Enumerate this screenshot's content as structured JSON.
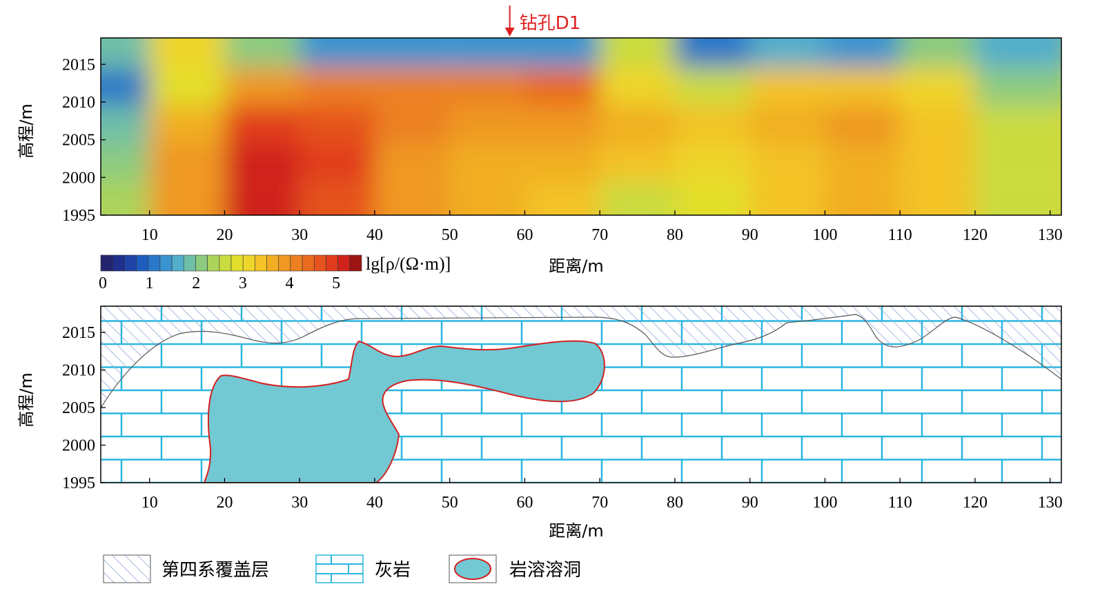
{
  "borehole": {
    "label": "钻孔D1",
    "x": 58
  },
  "axes": {
    "x_ticks": [
      10,
      20,
      30,
      40,
      50,
      60,
      70,
      80,
      90,
      100,
      110,
      120,
      130
    ],
    "y_ticks": [
      1995,
      2000,
      2005,
      2010,
      2015
    ],
    "x_range": [
      3.5,
      131.5
    ],
    "y_range": [
      1995,
      2018.5
    ],
    "xlabel": "距离/m",
    "ylabel": "高程/m"
  },
  "colorbar": {
    "label": "lg[ρ/(Ω·m)]",
    "ticks": [
      "0",
      "1",
      "2",
      "3",
      "4",
      "5"
    ],
    "colors": [
      "#24246e",
      "#202e8c",
      "#1e44aa",
      "#1f5ebf",
      "#2a78c8",
      "#3a94cf",
      "#52aecb",
      "#6fbfa8",
      "#8ccb80",
      "#acd45c",
      "#cadb3f",
      "#e2df2c",
      "#efd52a",
      "#f3c327",
      "#f1ae24",
      "#ef9822",
      "#ec8020",
      "#e86a1f",
      "#e5531e",
      "#e13c1d",
      "#d0231b",
      "#9c1414"
    ]
  },
  "chart_data": [
    {
      "type": "heatmap",
      "title": "",
      "xlabel": "距离/m",
      "ylabel": "高程/m",
      "value_label": "lg[ρ/(Ω·m)]",
      "xlim": [
        3.5,
        131.5
      ],
      "ylim": [
        1995,
        2018.5
      ],
      "value_range": [
        0,
        5.5
      ],
      "x": [
        5,
        15,
        25,
        35,
        45,
        55,
        65,
        75,
        85,
        95,
        105,
        115,
        125
      ],
      "y": [
        2017,
        2012,
        2007,
        2002,
        1997
      ],
      "values": [
        [
          1.8,
          3.2,
          2.0,
          1.4,
          1.3,
          1.4,
          1.4,
          2.6,
          1.2,
          1.5,
          1.3,
          2.2,
          1.6
        ],
        [
          1.2,
          2.8,
          3.8,
          4.0,
          4.2,
          4.2,
          4.4,
          3.0,
          2.6,
          3.4,
          3.4,
          3.0,
          2.2
        ],
        [
          1.8,
          3.6,
          4.8,
          4.6,
          4.0,
          3.8,
          3.8,
          3.6,
          3.4,
          3.6,
          3.8,
          3.4,
          2.6
        ],
        [
          2.2,
          3.8,
          5.0,
          4.8,
          3.8,
          3.6,
          3.6,
          3.4,
          3.2,
          3.4,
          3.6,
          3.4,
          2.6
        ],
        [
          2.4,
          3.8,
          5.0,
          4.6,
          3.8,
          3.6,
          3.4,
          2.6,
          2.8,
          3.4,
          3.6,
          3.4,
          2.6
        ]
      ]
    }
  ],
  "geology": {
    "xlabel": "距离/m",
    "ylabel": "高程/m"
  },
  "legend": [
    {
      "key": "overburden",
      "label": "第四系覆盖层"
    },
    {
      "key": "limestone",
      "label": "灰岩"
    },
    {
      "key": "cave",
      "label": "岩溶溶洞"
    }
  ],
  "colors": {
    "overburden_hatch": "#8fa8d6",
    "limestone_joint": "#29b6e0",
    "cave_fill": "#72c8d3",
    "cave_edge": "#d42020",
    "borehole_arrow": "#e02020"
  }
}
